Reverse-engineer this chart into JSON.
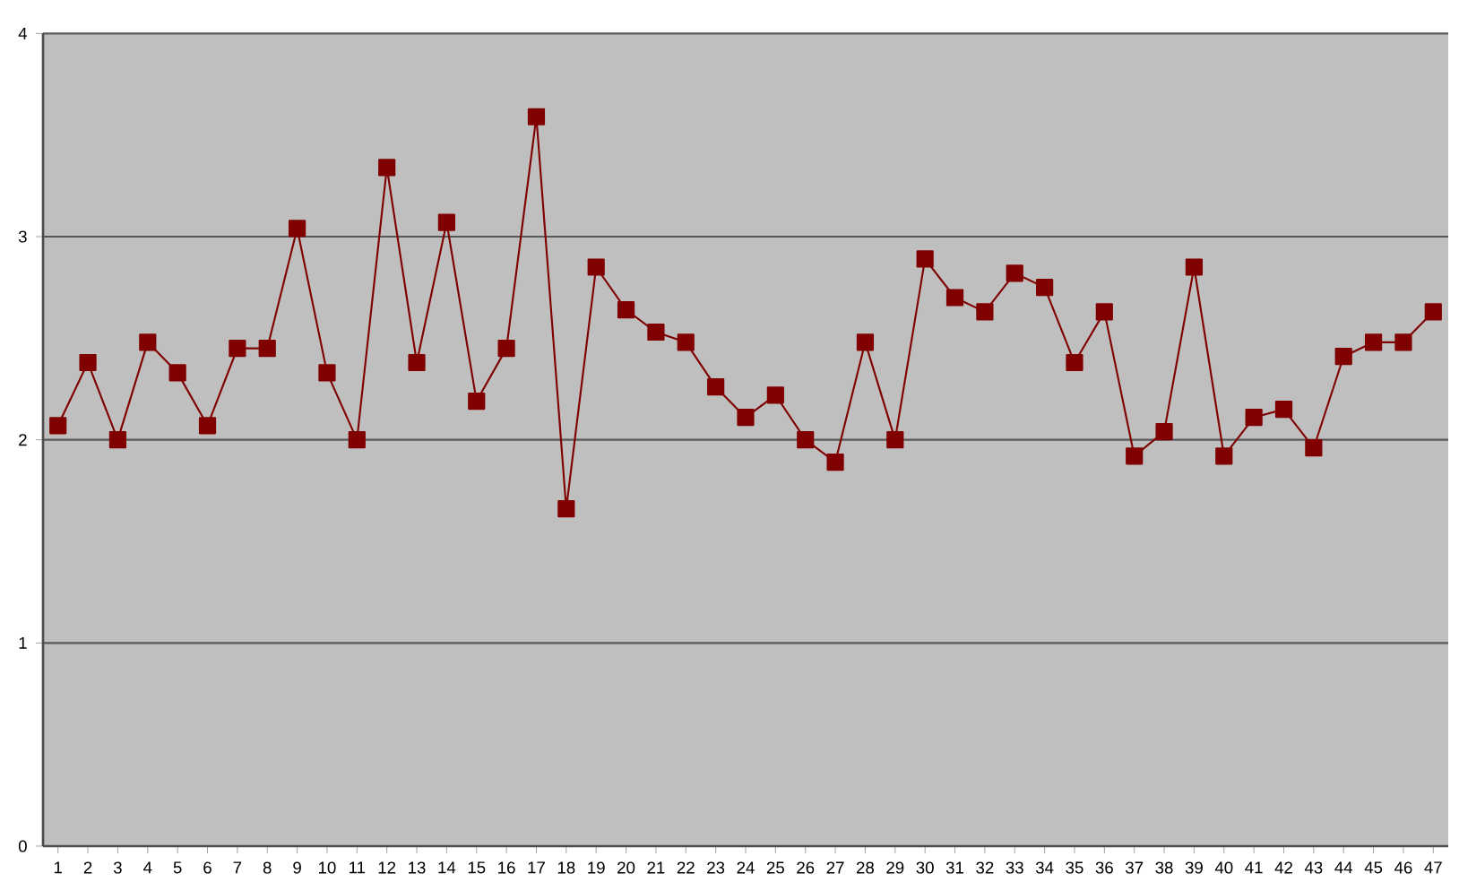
{
  "chart_data": {
    "type": "line",
    "categories": [
      "1",
      "2",
      "3",
      "4",
      "5",
      "6",
      "7",
      "8",
      "9",
      "10",
      "11",
      "12",
      "13",
      "14",
      "15",
      "16",
      "17",
      "18",
      "19",
      "20",
      "21",
      "22",
      "23",
      "24",
      "25",
      "26",
      "27",
      "28",
      "29",
      "30",
      "31",
      "32",
      "33",
      "34",
      "35",
      "36",
      "37",
      "38",
      "39",
      "40",
      "41",
      "42",
      "43",
      "44",
      "45",
      "46",
      "47"
    ],
    "series": [
      {
        "color": "#800000",
        "values": [
          2.07,
          2.38,
          2.0,
          2.48,
          2.33,
          2.07,
          2.45,
          2.45,
          3.04,
          2.33,
          2.0,
          3.34,
          2.38,
          3.07,
          2.19,
          2.45,
          3.59,
          1.66,
          2.85,
          2.64,
          2.53,
          2.48,
          2.26,
          2.11,
          2.22,
          2.0,
          1.89,
          2.48,
          2.0,
          2.89,
          2.7,
          2.63,
          2.82,
          2.75,
          2.38,
          2.63,
          1.92,
          2.04,
          2.85,
          1.92,
          2.11,
          2.15,
          1.96,
          2.41,
          2.48,
          2.48,
          2.63
        ]
      }
    ],
    "ylim": [
      0,
      4
    ],
    "yticks": [
      0,
      1,
      2,
      3,
      4
    ],
    "grid": "y",
    "marker": "square",
    "line_style": "solid"
  }
}
